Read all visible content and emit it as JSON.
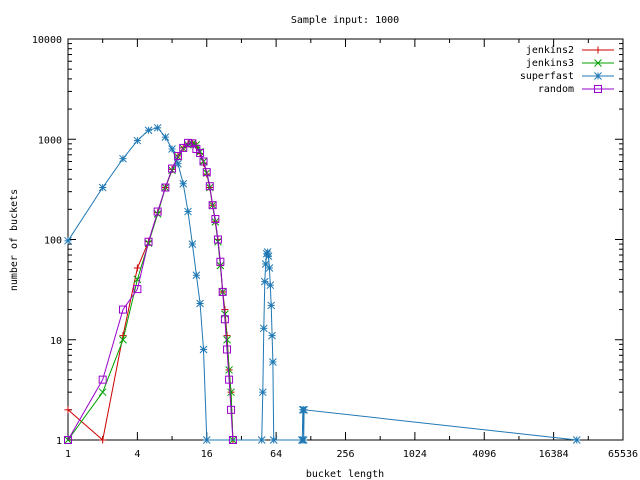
{
  "chart_data": {
    "type": "line",
    "title": "Sample input: 1000",
    "xlabel": "bucket length",
    "ylabel": "number of buckets",
    "x_scale": "log2",
    "y_scale": "log10",
    "xlim": [
      1,
      65536
    ],
    "ylim": [
      1,
      10000
    ],
    "x_ticks": [
      {
        "value": 1,
        "label": "1"
      },
      {
        "value": 4,
        "label": "4"
      },
      {
        "value": 16,
        "label": "16"
      },
      {
        "value": 64,
        "label": "64"
      },
      {
        "value": 256,
        "label": "256"
      },
      {
        "value": 1024,
        "label": "1024"
      },
      {
        "value": 4096,
        "label": "4096"
      },
      {
        "value": 16384,
        "label": "16384"
      },
      {
        "value": 65536,
        "label": "65536"
      }
    ],
    "y_ticks": [
      {
        "value": 1,
        "label": "1"
      },
      {
        "value": 10,
        "label": "10"
      },
      {
        "value": 100,
        "label": "100"
      },
      {
        "value": 1000,
        "label": "1000"
      },
      {
        "value": 10000,
        "label": "10000"
      }
    ],
    "grid": false,
    "legend_position": "top-right",
    "series": [
      {
        "name": "jenkins2",
        "color": "#cc0000",
        "marker": "plus",
        "points": [
          [
            1,
            2
          ],
          [
            2,
            1
          ],
          [
            3,
            11
          ],
          [
            4,
            52
          ],
          [
            5,
            95
          ],
          [
            6,
            185
          ],
          [
            7,
            330
          ],
          [
            8,
            500
          ],
          [
            9,
            680
          ],
          [
            10,
            820
          ],
          [
            11,
            900
          ],
          [
            12,
            920
          ],
          [
            13,
            870
          ],
          [
            14,
            720
          ],
          [
            15,
            580
          ],
          [
            16,
            450
          ],
          [
            17,
            330
          ],
          [
            18,
            220
          ],
          [
            19,
            150
          ],
          [
            20,
            100
          ],
          [
            21,
            55
          ],
          [
            22,
            30
          ],
          [
            23,
            20
          ],
          [
            24,
            11
          ],
          [
            25,
            5
          ],
          [
            26,
            3
          ],
          [
            27,
            1
          ]
        ]
      },
      {
        "name": "jenkins3",
        "color": "#00a000",
        "marker": "x",
        "points": [
          [
            1,
            1
          ],
          [
            2,
            3
          ],
          [
            3,
            10
          ],
          [
            4,
            40
          ],
          [
            5,
            92
          ],
          [
            6,
            180
          ],
          [
            7,
            330
          ],
          [
            8,
            490
          ],
          [
            9,
            670
          ],
          [
            10,
            810
          ],
          [
            11,
            880
          ],
          [
            12,
            900
          ],
          [
            13,
            880
          ],
          [
            14,
            750
          ],
          [
            15,
            600
          ],
          [
            16,
            460
          ],
          [
            17,
            330
          ],
          [
            18,
            220
          ],
          [
            19,
            150
          ],
          [
            20,
            95
          ],
          [
            21,
            55
          ],
          [
            22,
            30
          ],
          [
            23,
            18
          ],
          [
            24,
            10
          ],
          [
            25,
            5
          ],
          [
            26,
            3
          ],
          [
            27,
            1
          ]
        ]
      },
      {
        "name": "superfast",
        "color": "#1e78b4",
        "marker": "star",
        "points": [
          [
            1,
            97
          ],
          [
            2,
            330
          ],
          [
            3,
            640
          ],
          [
            4,
            970
          ],
          [
            5,
            1230
          ],
          [
            6,
            1300
          ],
          [
            7,
            1050
          ],
          [
            8,
            800
          ],
          [
            9,
            570
          ],
          [
            10,
            360
          ],
          [
            11,
            190
          ],
          [
            12,
            90
          ],
          [
            13,
            44
          ],
          [
            14,
            23
          ],
          [
            15,
            8
          ],
          [
            16,
            1
          ],
          [
            48,
            1
          ],
          [
            49,
            3
          ],
          [
            50,
            13
          ],
          [
            51,
            38
          ],
          [
            52,
            57
          ],
          [
            53,
            72
          ],
          [
            54,
            75
          ],
          [
            55,
            68
          ],
          [
            56,
            52
          ],
          [
            57,
            35
          ],
          [
            58,
            22
          ],
          [
            59,
            11
          ],
          [
            60,
            6
          ],
          [
            61,
            1
          ],
          [
            107,
            1
          ],
          [
            108,
            1
          ],
          [
            109,
            2
          ],
          [
            110,
            2
          ],
          [
            111,
            1
          ],
          [
            112,
            2
          ],
          [
            26000,
            1
          ]
        ]
      },
      {
        "name": "random",
        "color": "#9900cc",
        "marker": "square",
        "points": [
          [
            1,
            1
          ],
          [
            2,
            4
          ],
          [
            3,
            20
          ],
          [
            4,
            32
          ],
          [
            5,
            95
          ],
          [
            6,
            190
          ],
          [
            7,
            330
          ],
          [
            8,
            510
          ],
          [
            9,
            680
          ],
          [
            10,
            820
          ],
          [
            11,
            920
          ],
          [
            12,
            910
          ],
          [
            13,
            800
          ],
          [
            14,
            730
          ],
          [
            15,
            600
          ],
          [
            16,
            470
          ],
          [
            17,
            340
          ],
          [
            18,
            220
          ],
          [
            19,
            160
          ],
          [
            20,
            100
          ],
          [
            21,
            60
          ],
          [
            22,
            30
          ],
          [
            23,
            16
          ],
          [
            24,
            8
          ],
          [
            25,
            4
          ],
          [
            26,
            2
          ],
          [
            27,
            1
          ]
        ]
      }
    ]
  }
}
